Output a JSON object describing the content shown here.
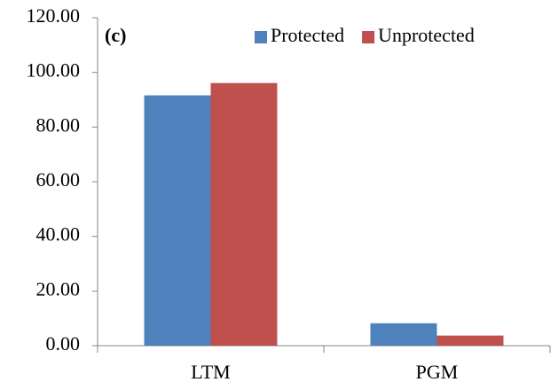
{
  "chart_data": {
    "type": "bar",
    "annotation": "(c)",
    "categories": [
      "LTM",
      "PGM"
    ],
    "series": [
      {
        "name": "Protected",
        "color": "#4f81bd",
        "values": [
          91.6,
          8.2
        ]
      },
      {
        "name": "Unprotected",
        "color": "#c0504d",
        "values": [
          96.1,
          3.7
        ]
      }
    ],
    "ylim": [
      0,
      120
    ],
    "yticks": [
      {
        "value": 0,
        "label": "0.00"
      },
      {
        "value": 20,
        "label": "20.00"
      },
      {
        "value": 40,
        "label": "40.00"
      },
      {
        "value": 60,
        "label": "60.00"
      },
      {
        "value": 80,
        "label": "80.00"
      },
      {
        "value": 100,
        "label": "100.00"
      },
      {
        "value": 120,
        "label": "120.00"
      }
    ],
    "grid": false,
    "legend": "top-right"
  }
}
